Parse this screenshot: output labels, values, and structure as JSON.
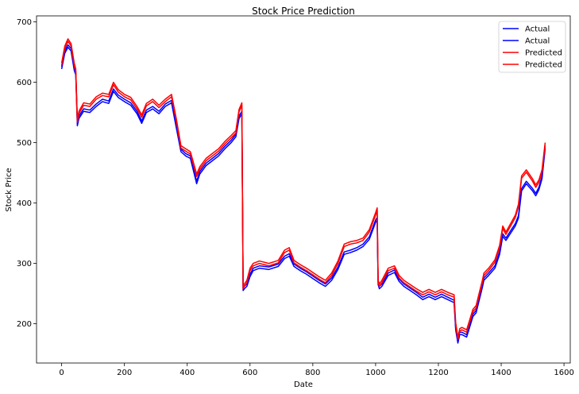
{
  "chart_data": {
    "type": "line",
    "title": "Stock Price Prediction",
    "xlabel": "Date",
    "ylabel": "Stock Price",
    "xlim": [
      -80,
      1620
    ],
    "ylim": [
      135,
      710
    ],
    "xticks": [
      0,
      200,
      400,
      600,
      800,
      1000,
      1200,
      1400,
      1600
    ],
    "yticks": [
      200,
      300,
      400,
      500,
      600,
      700
    ],
    "grid": false,
    "legend_position": "top-right",
    "x": [
      0,
      10,
      20,
      30,
      40,
      45,
      50,
      55,
      70,
      90,
      110,
      130,
      150,
      165,
      180,
      200,
      220,
      240,
      255,
      270,
      290,
      310,
      330,
      350,
      365,
      380,
      395,
      410,
      430,
      440,
      460,
      480,
      500,
      520,
      540,
      555,
      565,
      574,
      578,
      582,
      590,
      600,
      610,
      630,
      660,
      690,
      710,
      725,
      740,
      760,
      780,
      800,
      820,
      840,
      860,
      880,
      900,
      920,
      940,
      960,
      980,
      1000,
      1005,
      1008,
      1012,
      1020,
      1040,
      1060,
      1075,
      1090,
      1110,
      1130,
      1150,
      1170,
      1190,
      1210,
      1230,
      1250,
      1255,
      1262,
      1268,
      1275,
      1290,
      1310,
      1320,
      1340,
      1345,
      1360,
      1380,
      1395,
      1405,
      1415,
      1430,
      1445,
      1455,
      1465,
      1480,
      1500,
      1510,
      1520,
      1530,
      1540
    ],
    "series": [
      {
        "name": "Actual",
        "color": "#0000ff",
        "values": [
          622,
          648,
          658,
          652,
          620,
          612,
          528,
          540,
          552,
          550,
          560,
          568,
          565,
          585,
          575,
          568,
          562,
          548,
          532,
          550,
          556,
          548,
          560,
          566,
          525,
          485,
          478,
          474,
          432,
          448,
          462,
          470,
          478,
          490,
          500,
          510,
          540,
          548,
          255,
          258,
          262,
          278,
          288,
          292,
          290,
          295,
          308,
          312,
          295,
          288,
          282,
          275,
          268,
          262,
          272,
          290,
          315,
          318,
          322,
          328,
          340,
          368,
          372,
          265,
          258,
          262,
          280,
          285,
          270,
          262,
          255,
          248,
          240,
          245,
          240,
          245,
          240,
          235,
          190,
          168,
          182,
          182,
          178,
          212,
          218,
          260,
          272,
          280,
          292,
          315,
          345,
          338,
          350,
          362,
          375,
          420,
          432,
          420,
          412,
          422,
          440,
          490
        ]
      },
      {
        "name": "Actual",
        "color": "#0000ff",
        "values": [
          626,
          652,
          662,
          656,
          624,
          616,
          532,
          544,
          556,
          554,
          564,
          572,
          569,
          589,
          579,
          572,
          566,
          552,
          536,
          554,
          560,
          552,
          564,
          570,
          529,
          489,
          482,
          478,
          436,
          452,
          466,
          474,
          482,
          494,
          504,
          514,
          544,
          552,
          259,
          262,
          266,
          282,
          292,
          296,
          294,
          299,
          312,
          316,
          299,
          292,
          286,
          279,
          272,
          266,
          276,
          294,
          319,
          322,
          326,
          332,
          344,
          372,
          376,
          269,
          262,
          266,
          284,
          289,
          274,
          266,
          259,
          252,
          244,
          249,
          244,
          249,
          244,
          239,
          194,
          172,
          186,
          186,
          182,
          216,
          222,
          264,
          276,
          284,
          296,
          319,
          349,
          342,
          354,
          366,
          379,
          424,
          436,
          424,
          416,
          426,
          444,
          494
        ]
      },
      {
        "name": "Predicted",
        "color": "#ff0000",
        "values": [
          632,
          660,
          672,
          664,
          632,
          622,
          538,
          552,
          566,
          564,
          576,
          582,
          580,
          600,
          588,
          580,
          575,
          560,
          546,
          565,
          572,
          562,
          572,
          580,
          540,
          495,
          490,
          485,
          448,
          460,
          474,
          482,
          490,
          502,
          512,
          520,
          555,
          566,
          262,
          266,
          272,
          292,
          300,
          304,
          300,
          305,
          322,
          326,
          305,
          298,
          292,
          285,
          278,
          272,
          284,
          304,
          332,
          336,
          338,
          342,
          356,
          384,
          392,
          272,
          266,
          272,
          292,
          296,
          280,
          272,
          265,
          258,
          252,
          257,
          252,
          257,
          252,
          248,
          202,
          178,
          192,
          194,
          190,
          224,
          230,
          272,
          284,
          292,
          306,
          330,
          362,
          352,
          366,
          380,
          398,
          445,
          455,
          440,
          430,
          438,
          455,
          500
        ]
      },
      {
        "name": "Predicted",
        "color": "#ff0000",
        "values": [
          628,
          656,
          668,
          660,
          628,
          618,
          534,
          548,
          562,
          560,
          572,
          578,
          576,
          596,
          584,
          576,
          571,
          556,
          542,
          561,
          568,
          558,
          568,
          576,
          536,
          491,
          486,
          481,
          444,
          456,
          470,
          478,
          486,
          498,
          508,
          516,
          551,
          562,
          258,
          262,
          268,
          288,
          296,
          300,
          296,
          301,
          318,
          322,
          301,
          294,
          288,
          281,
          274,
          268,
          280,
          300,
          328,
          332,
          334,
          338,
          352,
          380,
          388,
          268,
          262,
          268,
          288,
          292,
          276,
          268,
          261,
          254,
          248,
          253,
          248,
          253,
          248,
          244,
          198,
          174,
          188,
          190,
          186,
          220,
          226,
          268,
          280,
          288,
          302,
          326,
          358,
          348,
          362,
          376,
          394,
          441,
          451,
          436,
          426,
          434,
          451,
          496
        ]
      }
    ]
  }
}
